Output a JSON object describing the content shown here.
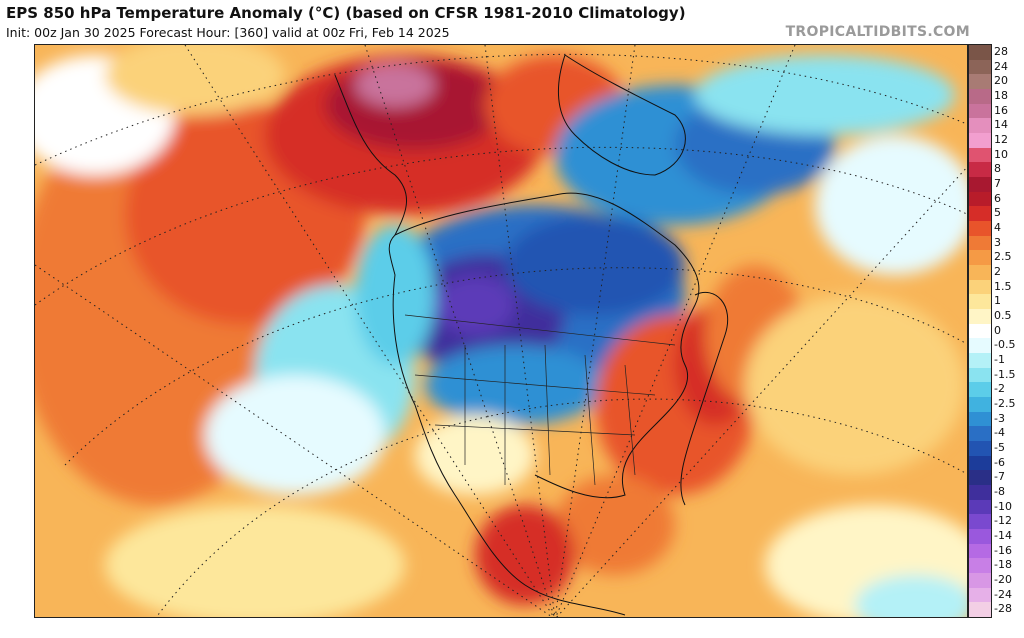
{
  "header": {
    "title": "EPS 850 hPa Temperature Anomaly (°C) (based on CFSR 1981-2010 Climatology)",
    "subtitle": "Init: 00z Jan 30 2025   Forecast Hour: [360]   valid at 00z Fri, Feb 14 2025",
    "credit": "TROPICALTIDBITS.COM"
  },
  "map": {
    "region": "North America",
    "variable": "850 hPa temperature anomaly",
    "projection": "polar stereographic"
  },
  "colorbar": {
    "unit": "°C",
    "levels": [
      "28",
      "24",
      "20",
      "18",
      "16",
      "14",
      "12",
      "10",
      "8",
      "7",
      "6",
      "5",
      "4",
      "3",
      "2.5",
      "2",
      "1.5",
      "1",
      "0.5",
      "0",
      "-0.5",
      "-1",
      "-1.5",
      "-2",
      "-2.5",
      "-3",
      "-4",
      "-5",
      "-6",
      "-7",
      "-8",
      "-10",
      "-12",
      "-14",
      "-16",
      "-18",
      "-20",
      "-24",
      "-28"
    ],
    "colors": [
      "#7a5548",
      "#8c6458",
      "#a87b74",
      "#b86a88",
      "#c9739c",
      "#e48fbd",
      "#f29fcf",
      "#e05370",
      "#c82a45",
      "#a81830",
      "#b81c2a",
      "#d62d28",
      "#e8542b",
      "#ef7a36",
      "#f59a45",
      "#f8b558",
      "#fbd27a",
      "#fde79b",
      "#fff5c6",
      "#ffffff",
      "#e6fbff",
      "#b4f1f7",
      "#8ae3f0",
      "#5ccde9",
      "#40b2e0",
      "#2f90d4",
      "#2a6fc5",
      "#2254b2",
      "#1c3c9a",
      "#2a2f87",
      "#3f2f9c",
      "#5b3ab8",
      "#7a49cf",
      "#9a58dd",
      "#b56ae4",
      "#c87fe6",
      "#d897e5",
      "#e6b0e8",
      "#f3cfe5"
    ]
  }
}
